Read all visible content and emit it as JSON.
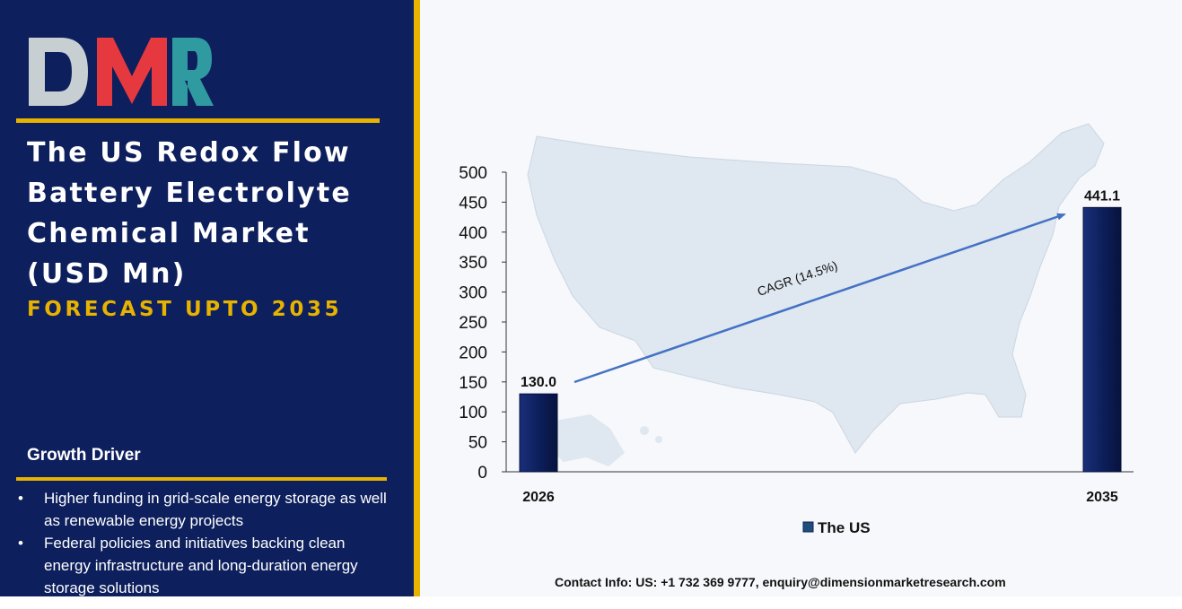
{
  "brand": {
    "logo_text": "DMR"
  },
  "left_panel": {
    "title_lines": [
      "The US Redox Flow",
      "Battery Electrolyte",
      "Chemical Market",
      "(USD Mn)"
    ],
    "subtitle": "FORECAST UPTO 2035",
    "growth_driver_heading": "Growth Driver",
    "bullets": [
      "Higher funding in grid-scale energy storage as well as renewable energy projects",
      "Federal policies and initiatives backing clean energy infrastructure and long-duration energy storage solutions"
    ]
  },
  "chart_data": {
    "type": "bar",
    "categories": [
      "2026",
      "2035"
    ],
    "series": [
      {
        "name": "The US",
        "values": [
          130.0,
          441.1
        ]
      }
    ],
    "data_labels": [
      "130.0",
      "441.1"
    ],
    "ylim": [
      0,
      500
    ],
    "yticks": [
      0,
      50,
      100,
      150,
      200,
      250,
      300,
      350,
      400,
      450,
      500
    ],
    "annotation": "CAGR (14.5%)",
    "legend_position": "bottom-center",
    "grid": false,
    "background_map": "us-map",
    "colors": {
      "bar": "#0d1f5c",
      "arrow": "#4472c4",
      "map": "#dfe7f0"
    }
  },
  "footer": {
    "contact": "Contact Info: US: +1 732 369 9777, enquiry@dimensionmarketresearch.com"
  }
}
